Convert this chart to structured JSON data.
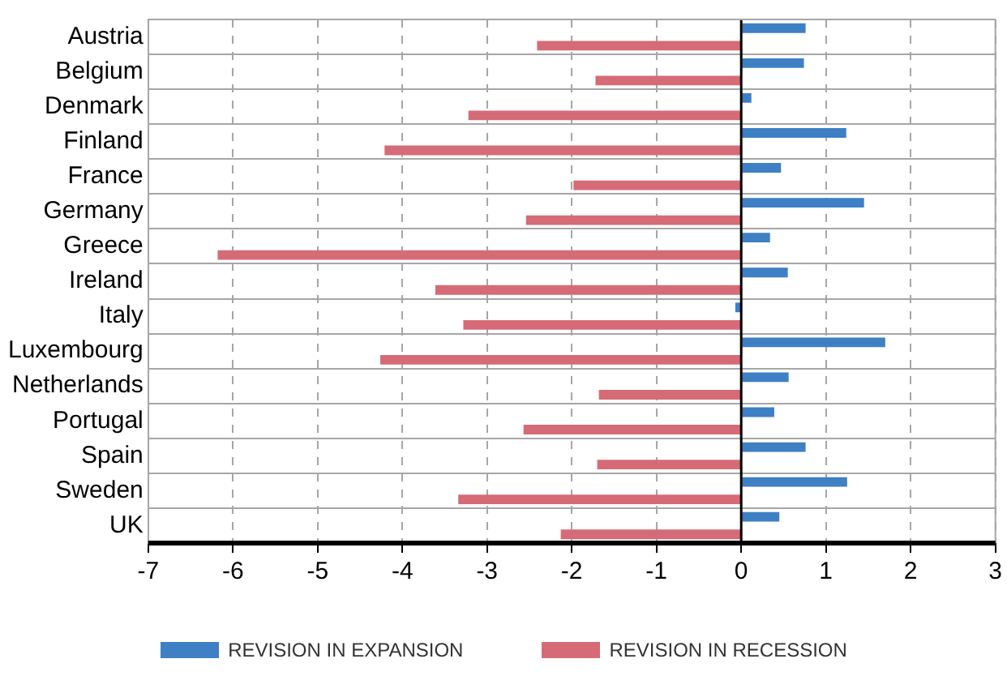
{
  "chart_data": {
    "type": "bar",
    "orientation": "horizontal",
    "categories": [
      "Austria",
      "Belgium",
      "Denmark",
      "Finland",
      "France",
      "Germany",
      "Greece",
      "Ireland",
      "Italy",
      "Luxembourg",
      "Netherlands",
      "Portugal",
      "Spain",
      "Sweden",
      "UK"
    ],
    "series": [
      {
        "name": "REVISION IN EXPANSION",
        "color": "#3f7fc4",
        "values": [
          0.76,
          0.74,
          0.12,
          1.24,
          0.47,
          1.45,
          0.34,
          0.55,
          -0.07,
          1.7,
          0.56,
          0.39,
          0.76,
          1.25,
          0.45
        ]
      },
      {
        "name": "REVISION IN RECESSION",
        "color": "#d56b76",
        "values": [
          -2.41,
          -1.72,
          -3.22,
          -4.21,
          -1.98,
          -2.54,
          -6.18,
          -3.61,
          -3.28,
          -4.26,
          -1.68,
          -2.57,
          -1.7,
          -3.34,
          -2.13
        ]
      }
    ],
    "xlim": [
      -7,
      3
    ],
    "xticks": [
      -7,
      -6,
      -5,
      -4,
      -3,
      -2,
      -1,
      0,
      1,
      2,
      3
    ],
    "grid": true,
    "legend": "bottom"
  }
}
